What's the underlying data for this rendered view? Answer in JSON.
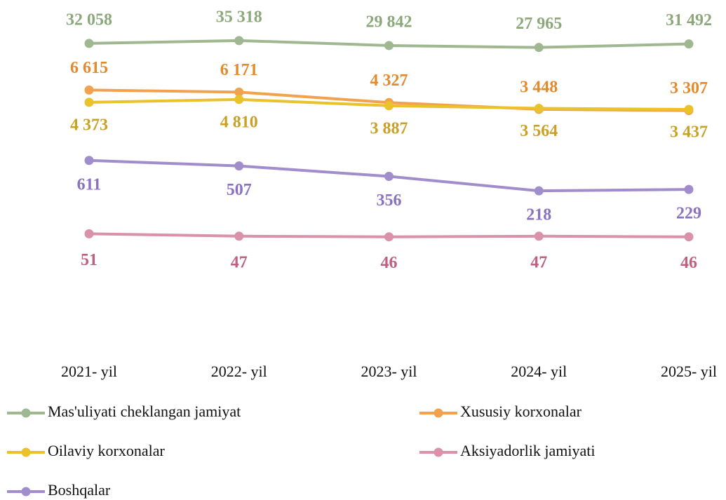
{
  "chart_data": {
    "type": "line",
    "categories": [
      "2021- yil",
      "2022- yil",
      "2023- yil",
      "2024- yil",
      "2025- yil"
    ],
    "log_scale": true,
    "ylim": [
      10,
      100000
    ],
    "legend": "bottom",
    "series": [
      {
        "name": "Mas'uliyati cheklangan jamiyat",
        "color": "#9fb891",
        "label_color": "#8ca87b",
        "values": [
          32058,
          35318,
          29842,
          27965,
          31492
        ],
        "value_labels": [
          "32 058",
          "35 318",
          "29 842",
          "27 965",
          "31 492"
        ]
      },
      {
        "name": "Xususiy korxonalar",
        "color": "#f2a24e",
        "label_color": "#e38a2c",
        "values": [
          6615,
          6171,
          4327,
          3448,
          3307
        ],
        "value_labels": [
          "6 615",
          "6 171",
          "4 327",
          "3 448",
          "3 307"
        ]
      },
      {
        "name": "Oilaviy korxonalar",
        "color": "#e9c22c",
        "label_color": "#c9a126",
        "values": [
          4373,
          4810,
          3887,
          3564,
          3437
        ],
        "value_labels": [
          "4 373",
          "4 810",
          "3 887",
          "3 564",
          "3 437"
        ]
      },
      {
        "name": "Aksiyadorlik jamiyati",
        "color": "#d992aa",
        "label_color": "#c0607f",
        "values": [
          51,
          47,
          46,
          47,
          46
        ],
        "value_labels": [
          "51",
          "47",
          "46",
          "47",
          "46"
        ]
      },
      {
        "name": "Boshqalar",
        "color": "#a18dcb",
        "label_color": "#8a71c1",
        "values": [
          611,
          507,
          356,
          218,
          229
        ],
        "value_labels": [
          "611",
          "507",
          "356",
          "218",
          "229"
        ]
      }
    ]
  }
}
